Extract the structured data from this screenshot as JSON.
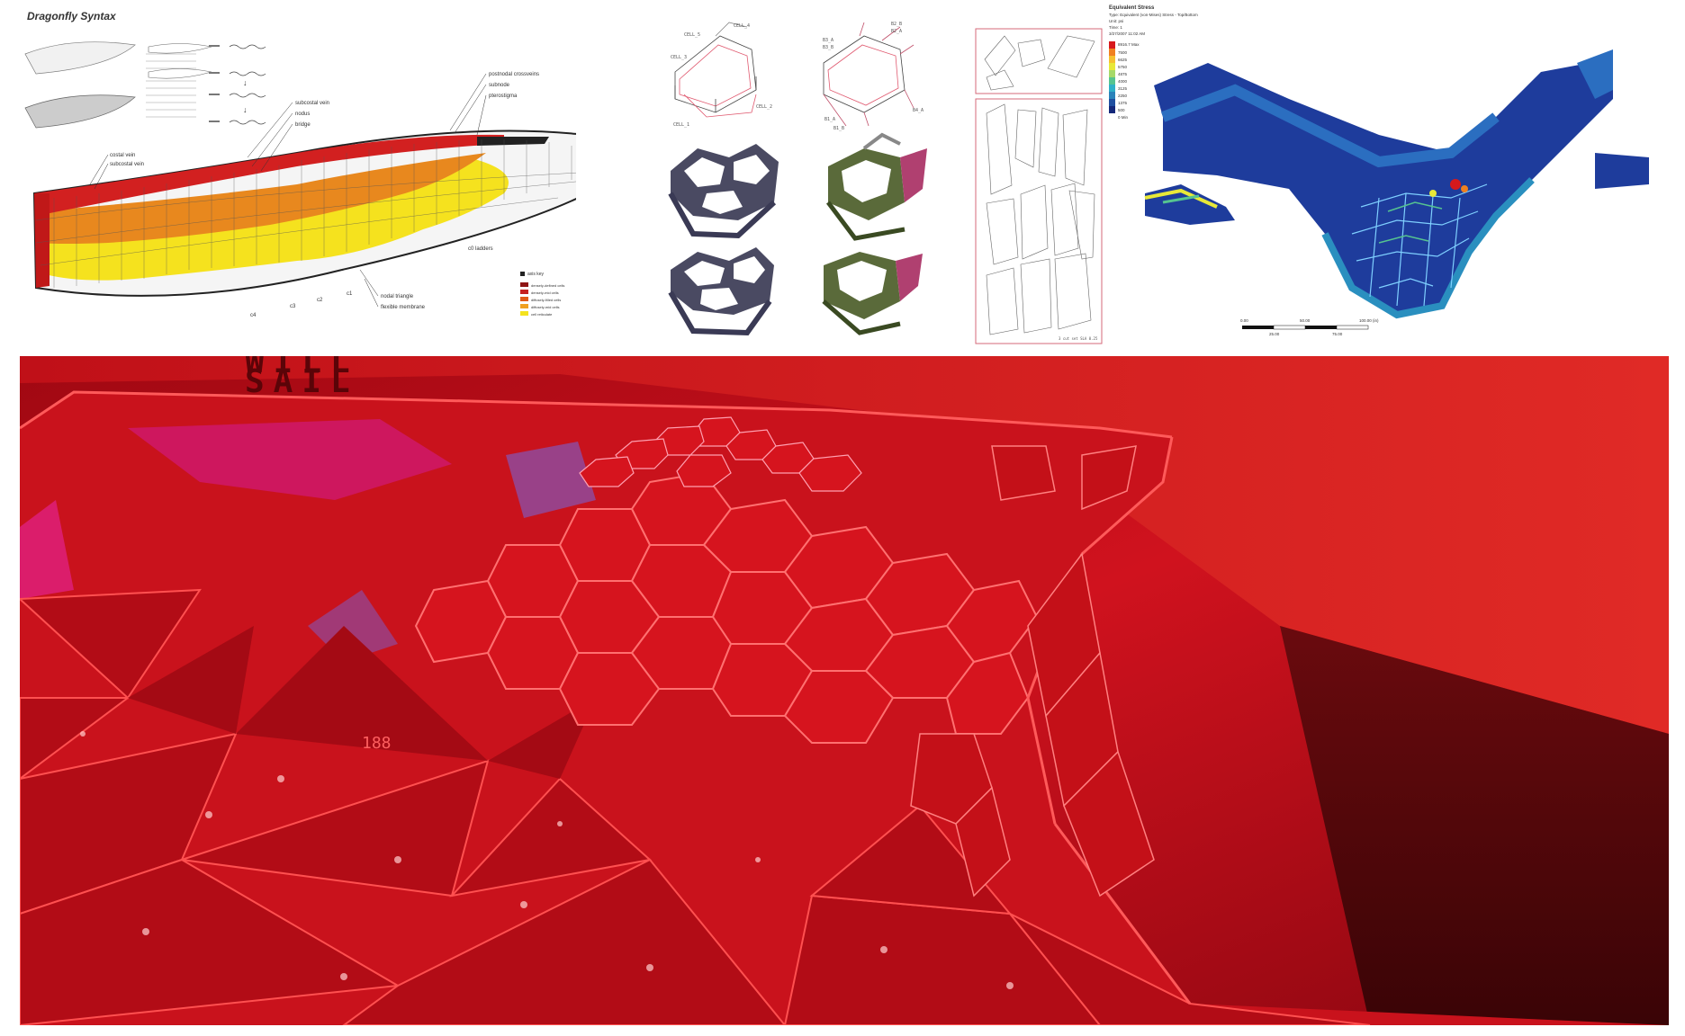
{
  "wing_panel": {
    "title": "Dragonfly Syntax",
    "vein_labels": [
      "subcostal vein",
      "nodus",
      "bridge",
      "subcostal vein",
      "pterostigma",
      "postnodal crossveins",
      "subnode",
      "costal vein"
    ],
    "bottom_labels": [
      "nodal triangle",
      "flexible membrane"
    ],
    "axis_labels": [
      "c4",
      "c3",
      "c2",
      "c1",
      "c0 ladders"
    ],
    "legend_title": "axis key",
    "legend_items": [
      "densely-defined cells",
      "densely-mid cells",
      "diffusely-filled cells",
      "diffusely-mid cells",
      "cell reticulate"
    ],
    "legend_colors": [
      "#8e1414",
      "#c62020",
      "#e05a16",
      "#f0a020",
      "#f4e21e"
    ]
  },
  "cells_panel": {
    "labels": [
      "CELL_4",
      "CELL_5",
      "CELL_3",
      "CELL_2",
      "CELL_1",
      "B2_B",
      "B2_A",
      "B3_A",
      "B3_B",
      "B1_A",
      "B1_B",
      "B4_A"
    ]
  },
  "sheet_panel": {
    "note": "3 cut set\nSLA 0.25"
  },
  "stress_panel": {
    "title": "Equivalent Stress",
    "subtitle_lines": [
      "Type: Equivalent (von-Mises) Stress - Top/Bottom",
      "Unit: psi",
      "Time: 1",
      "3/27/2007 11:02 AM"
    ],
    "legend_max": "8916.7 Max",
    "legend_ticks": [
      "7500",
      "6625",
      "5750",
      "4875",
      "4000",
      "3125",
      "2250",
      "1375",
      "500"
    ],
    "legend_min": "0 Min",
    "legend_colors": [
      "#d7191c",
      "#f08020",
      "#f6c030",
      "#e8e838",
      "#a6d96a",
      "#56c490",
      "#2fb0c8",
      "#2b83ba",
      "#1f4fa0",
      "#14287a"
    ],
    "scale_top": [
      "0.00",
      "50.00",
      "100.00 (in)"
    ],
    "scale_bottom": [
      "25.00",
      "75.00"
    ]
  },
  "photo": {
    "stencil_lines": [
      "WILL",
      "SAIL"
    ],
    "panel_number": "188"
  }
}
